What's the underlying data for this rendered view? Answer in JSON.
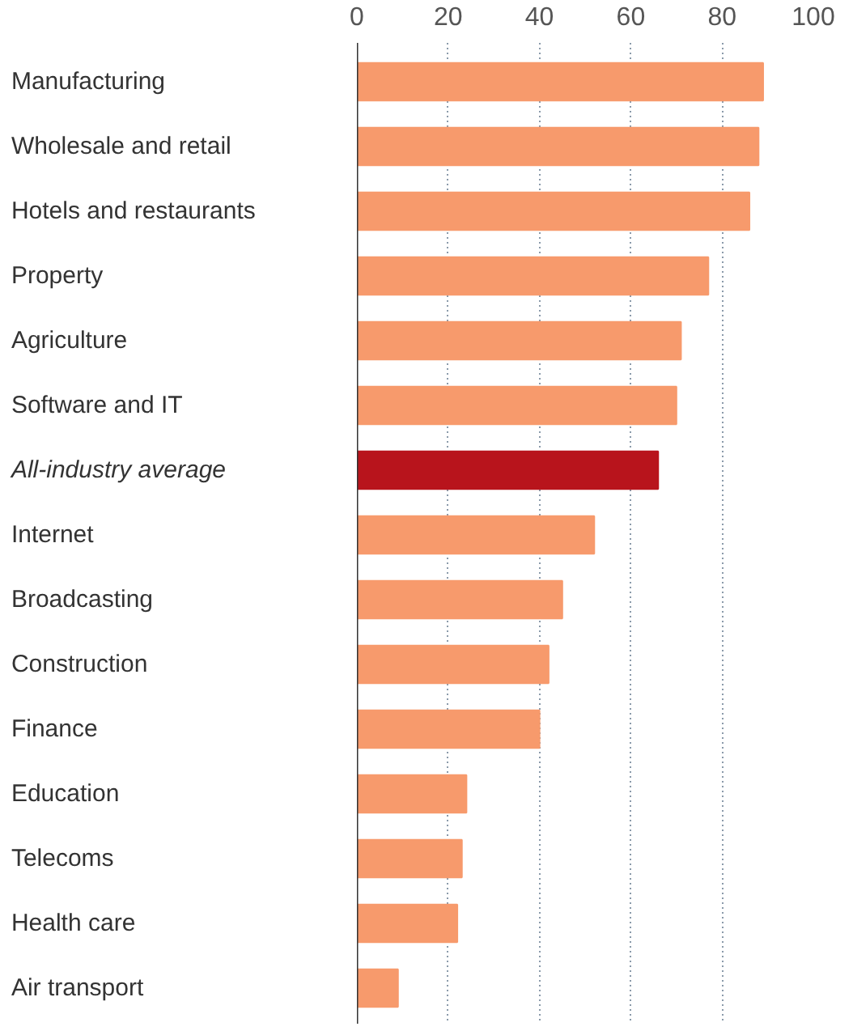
{
  "chart_data": {
    "type": "bar",
    "orientation": "horizontal",
    "categories": [
      "Manufacturing",
      "Wholesale and retail",
      "Hotels and restaurants",
      "Property",
      "Agriculture",
      "Software and IT",
      "All-industry average",
      "Internet",
      "Broadcasting",
      "Construction",
      "Finance",
      "Education",
      "Telecoms",
      "Health care",
      "Air transport"
    ],
    "values": [
      89,
      88,
      86,
      77,
      71,
      70,
      66,
      52,
      45,
      42,
      40,
      24,
      23,
      22,
      9
    ],
    "colors": [
      "#f79a6c",
      "#f79a6c",
      "#f79a6c",
      "#f79a6c",
      "#f79a6c",
      "#f79a6c",
      "#b8141c",
      "#f79a6c",
      "#f79a6c",
      "#f79a6c",
      "#f79a6c",
      "#f79a6c",
      "#f79a6c",
      "#f79a6c",
      "#f79a6c"
    ],
    "xlim": [
      0,
      100
    ],
    "xticks": [
      0,
      20,
      40,
      60,
      80,
      100
    ],
    "grid": "x"
  }
}
